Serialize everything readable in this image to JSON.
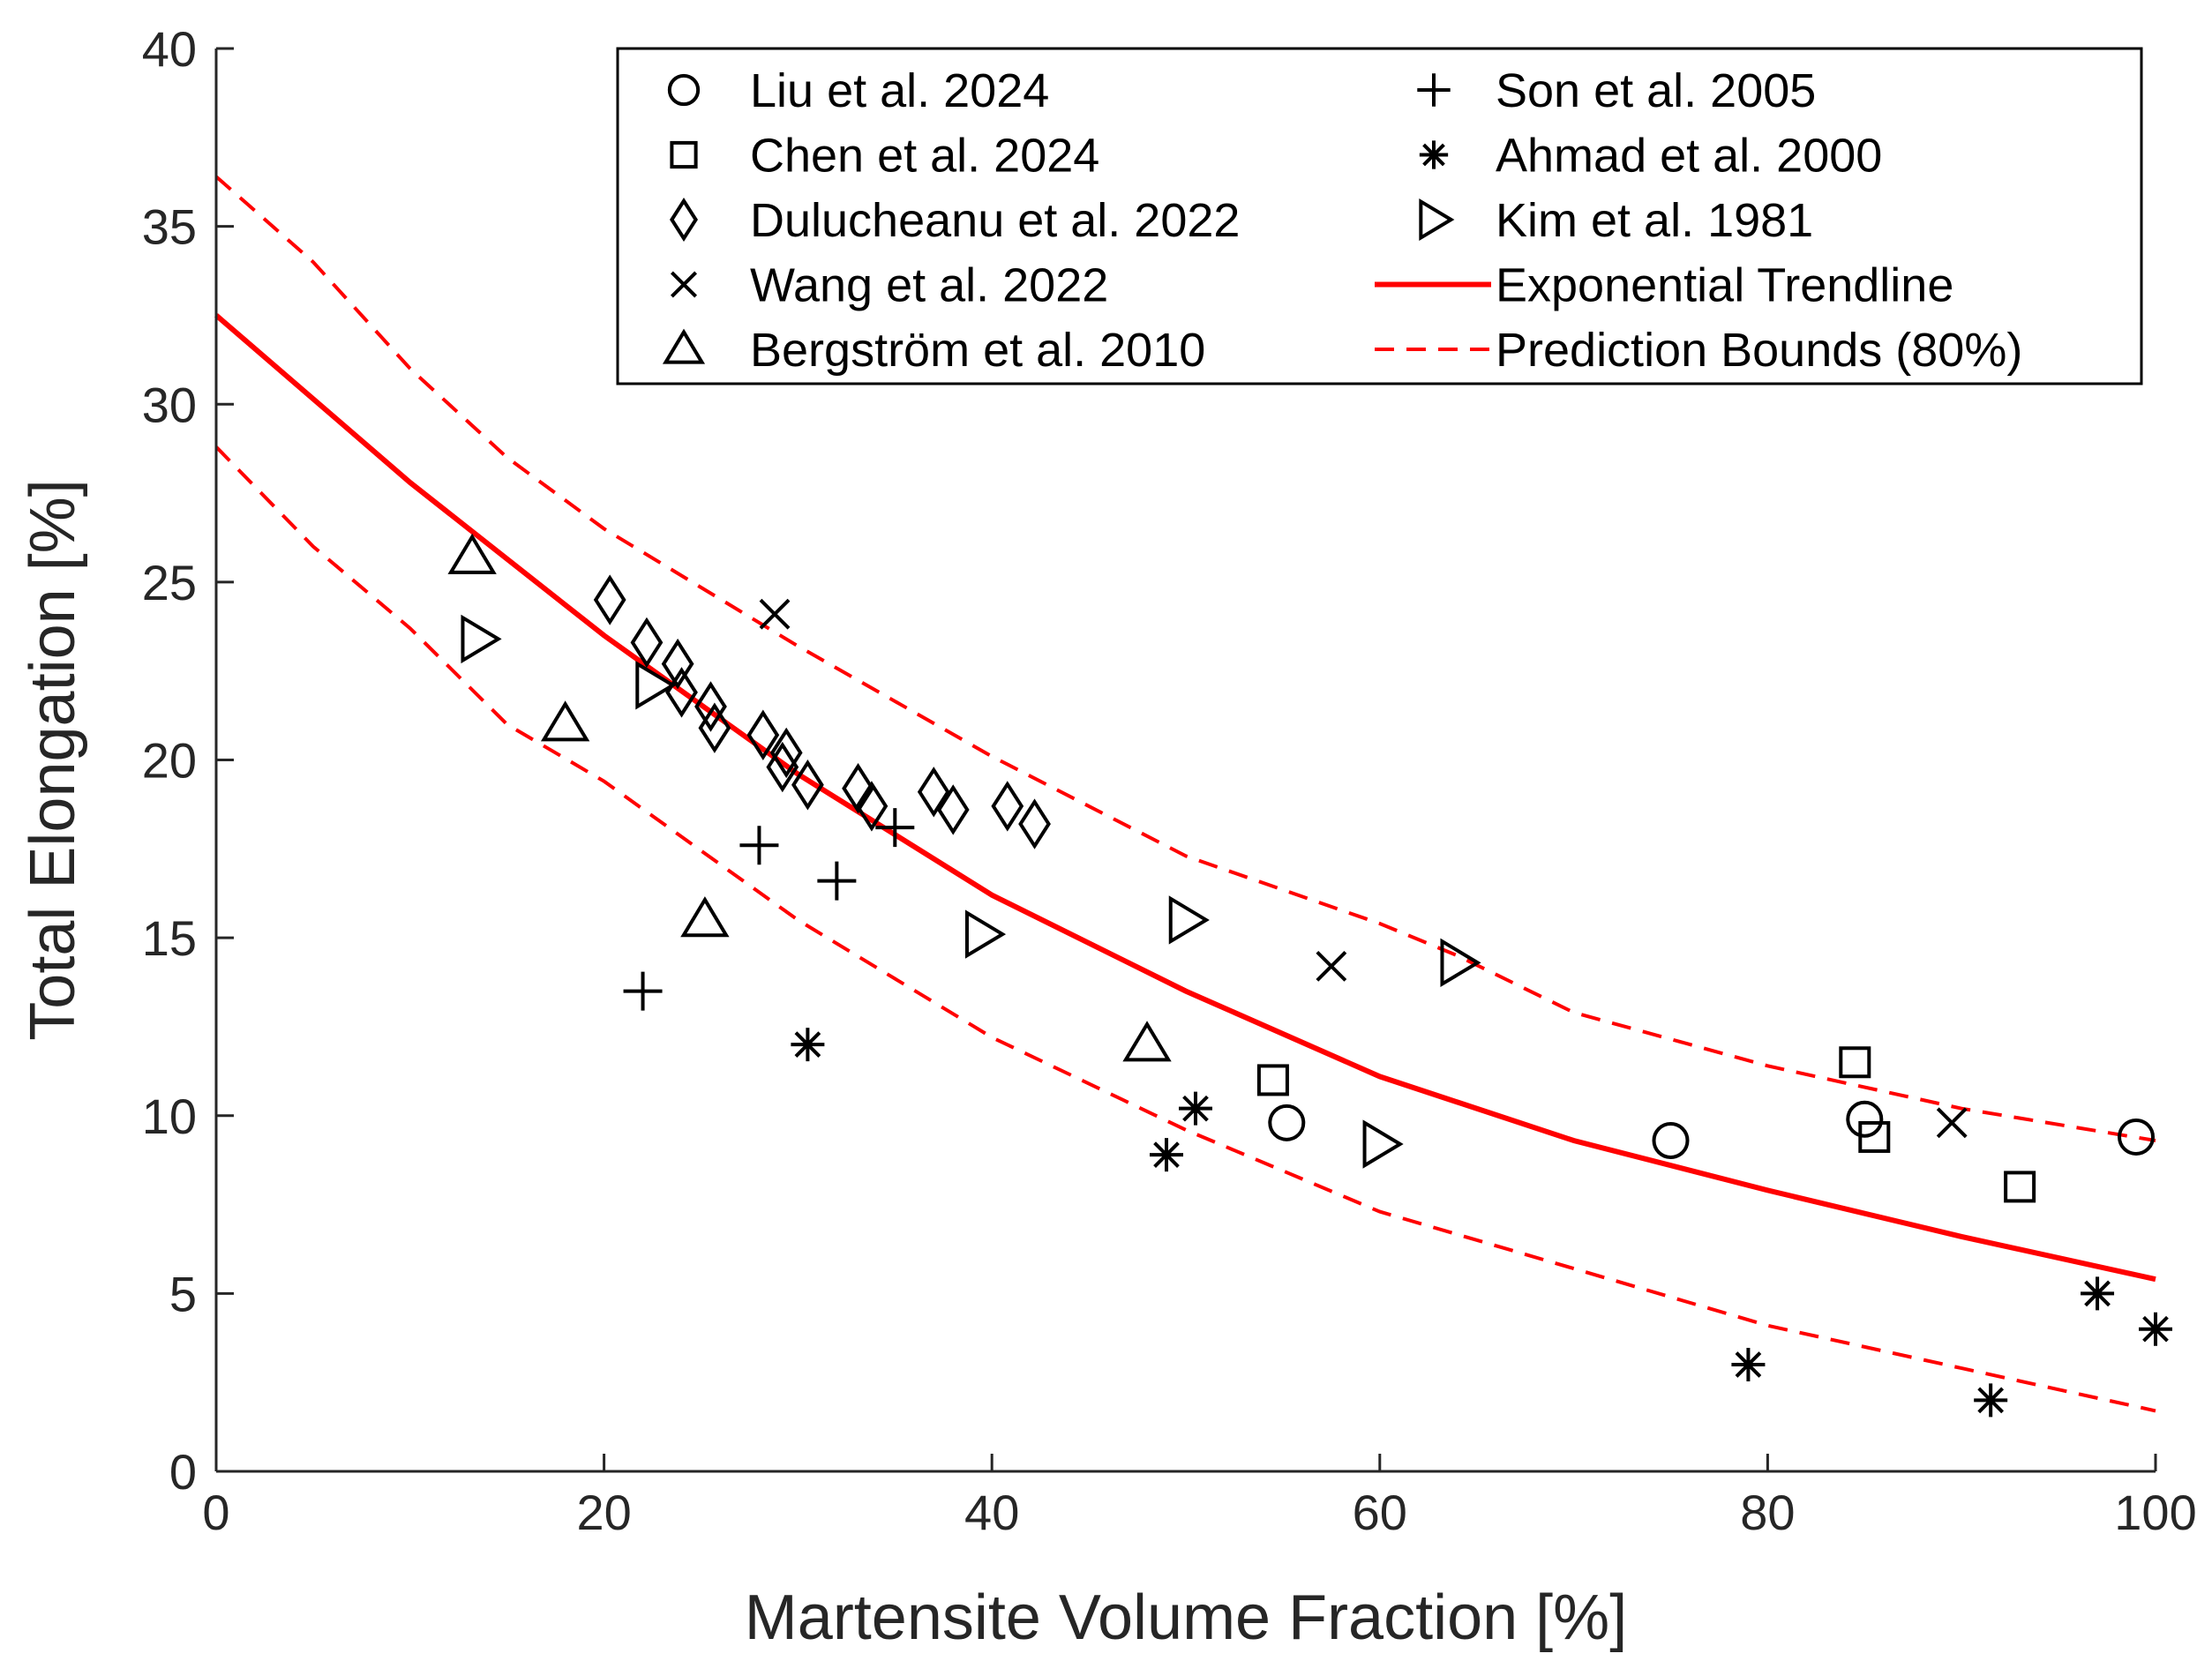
{
  "chart_data": {
    "type": "scatter",
    "title": "",
    "xlabel": "Martensite Volume Fraction [%]",
    "ylabel": "Total Elongation [%]",
    "xlim": [
      0,
      100
    ],
    "ylim": [
      0,
      40
    ],
    "x_ticks": [
      0,
      20,
      40,
      60,
      80,
      100
    ],
    "y_ticks": [
      0,
      5,
      10,
      15,
      20,
      25,
      30,
      35,
      40
    ],
    "grid": false,
    "legend_position": "top-right",
    "colors": {
      "data": "#000000",
      "fit": "#ff0000",
      "axes": "#262626"
    },
    "series": [
      {
        "name": "Liu et al. 2024",
        "marker": "circle",
        "points": [
          [
            55.2,
            9.8
          ],
          [
            75.0,
            9.3
          ],
          [
            85.0,
            9.9
          ],
          [
            99.0,
            9.4
          ]
        ]
      },
      {
        "name": "Chen et al. 2024",
        "marker": "square",
        "points": [
          [
            54.5,
            11.0
          ],
          [
            84.5,
            11.5
          ],
          [
            85.5,
            9.4
          ],
          [
            93.0,
            8.0
          ]
        ]
      },
      {
        "name": "Dulucheanu et al. 2022",
        "marker": "diamond",
        "points": [
          [
            20.3,
            24.5
          ],
          [
            22.2,
            23.3
          ],
          [
            23.8,
            22.7
          ],
          [
            24.0,
            21.9
          ],
          [
            25.5,
            21.5
          ],
          [
            25.7,
            20.9
          ],
          [
            28.2,
            20.7
          ],
          [
            29.4,
            20.2
          ],
          [
            29.2,
            19.8
          ],
          [
            30.5,
            19.3
          ],
          [
            33.1,
            19.2
          ],
          [
            33.8,
            18.7
          ],
          [
            37.0,
            19.1
          ],
          [
            38.0,
            18.6
          ],
          [
            40.8,
            18.7
          ],
          [
            42.2,
            18.2
          ]
        ]
      },
      {
        "name": "Wang et al. 2022",
        "marker": "x",
        "points": [
          [
            28.8,
            24.1
          ],
          [
            57.5,
            14.2
          ],
          [
            89.5,
            9.8
          ]
        ]
      },
      {
        "name": "Bergström et al. 2010",
        "marker": "triangle-up",
        "points": [
          [
            13.2,
            25.7
          ],
          [
            18.0,
            21.0
          ],
          [
            25.2,
            15.5
          ],
          [
            48.0,
            12.0
          ]
        ]
      },
      {
        "name": "Son et al. 2005",
        "marker": "plus",
        "points": [
          [
            22.0,
            13.5
          ],
          [
            28.0,
            17.6
          ],
          [
            32.0,
            16.6
          ],
          [
            35.0,
            18.1
          ]
        ]
      },
      {
        "name": "Ahmad et al. 2000",
        "marker": "asterisk",
        "points": [
          [
            30.5,
            12.0
          ],
          [
            49.0,
            8.9
          ],
          [
            50.5,
            10.2
          ],
          [
            79.0,
            3.0
          ],
          [
            91.5,
            2.0
          ],
          [
            97.0,
            5.0
          ],
          [
            100.0,
            4.0
          ]
        ]
      },
      {
        "name": "Kim et al. 1981",
        "marker": "triangle-right",
        "points": [
          [
            13.5,
            23.4
          ],
          [
            22.5,
            22.1
          ],
          [
            39.5,
            15.1
          ],
          [
            50.0,
            15.5
          ],
          [
            60.0,
            9.2
          ],
          [
            64.0,
            14.3
          ]
        ]
      },
      {
        "name": "Exponential Trendline",
        "style": "solid",
        "points": [
          [
            0,
            32.5
          ],
          [
            10,
            27.8
          ],
          [
            20,
            23.5
          ],
          [
            30,
            19.6
          ],
          [
            40,
            16.2
          ],
          [
            50,
            13.5
          ],
          [
            60,
            11.1
          ],
          [
            70,
            9.3
          ],
          [
            80,
            7.9
          ],
          [
            90,
            6.6
          ],
          [
            100,
            5.4
          ]
        ]
      },
      {
        "name": "Prediction Bounds (80%)",
        "style": "dashed",
        "upper": [
          [
            0,
            36.4
          ],
          [
            5,
            34.0
          ],
          [
            10,
            31.0
          ],
          [
            15,
            28.5
          ],
          [
            20,
            26.5
          ],
          [
            30,
            23.2
          ],
          [
            40,
            20.1
          ],
          [
            50,
            17.3
          ],
          [
            60,
            15.4
          ],
          [
            64,
            14.5
          ],
          [
            70,
            12.9
          ],
          [
            80,
            11.4
          ],
          [
            90,
            10.2
          ],
          [
            100,
            9.3
          ]
        ],
        "lower": [
          [
            0,
            28.8
          ],
          [
            5,
            26.0
          ],
          [
            10,
            23.7
          ],
          [
            15,
            21.0
          ],
          [
            20,
            19.4
          ],
          [
            30,
            15.5
          ],
          [
            40,
            12.2
          ],
          [
            50,
            9.6
          ],
          [
            60,
            7.3
          ],
          [
            70,
            5.7
          ],
          [
            80,
            4.1
          ],
          [
            90,
            2.9
          ],
          [
            100,
            1.7
          ]
        ]
      }
    ]
  }
}
